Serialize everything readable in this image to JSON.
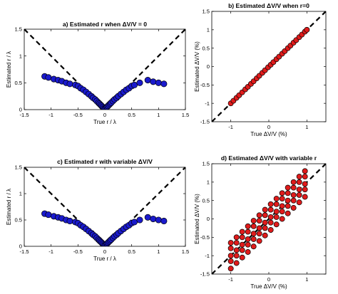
{
  "chart_data": [
    {
      "type": "scatter",
      "panel": "a",
      "title": "a) Estimated r when  ΔV/V = 0",
      "xlabel": "True r / λ",
      "ylabel": "Estimated r / λ",
      "xlim": [
        -1.5,
        1.5
      ],
      "ylim": [
        0,
        1.5
      ],
      "xticks": [
        -1.5,
        -1,
        -0.5,
        0,
        0.5,
        1,
        1.5
      ],
      "yticks": [
        0,
        0.5,
        1,
        1.5
      ],
      "xtick_labels": [
        "-1.5",
        "-1",
        "-0.5",
        "0",
        "0.5",
        "1",
        "1.5"
      ],
      "ytick_labels": [
        "0",
        "0.5",
        "1",
        "1.5"
      ],
      "grid": false,
      "reference_line": "|y| = |x| (dashed)",
      "marker_color": "#1a1acc",
      "x": [
        -1.12,
        -1.05,
        -0.95,
        -0.87,
        -0.8,
        -0.72,
        -0.65,
        -0.55,
        -0.5,
        -0.45,
        -0.4,
        -0.35,
        -0.3,
        -0.25,
        -0.22,
        -0.18,
        -0.15,
        -0.12,
        -0.1,
        -0.08,
        -0.06,
        -0.04,
        -0.02,
        0,
        0.02,
        0.04,
        0.06,
        0.08,
        0.1,
        0.12,
        0.15,
        0.18,
        0.22,
        0.25,
        0.3,
        0.35,
        0.4,
        0.45,
        0.5,
        0.55,
        0.65,
        0.8,
        0.9,
        1.0,
        1.1
      ],
      "y": [
        0.62,
        0.6,
        0.57,
        0.55,
        0.53,
        0.5,
        0.48,
        0.46,
        0.44,
        0.4,
        0.37,
        0.33,
        0.29,
        0.25,
        0.22,
        0.19,
        0.16,
        0.13,
        0.11,
        0.09,
        0.07,
        0.05,
        0.03,
        0.02,
        0.03,
        0.05,
        0.07,
        0.09,
        0.11,
        0.13,
        0.16,
        0.19,
        0.22,
        0.25,
        0.29,
        0.33,
        0.37,
        0.4,
        0.44,
        0.46,
        0.5,
        0.55,
        0.52,
        0.5,
        0.48
      ]
    },
    {
      "type": "scatter",
      "panel": "b",
      "title": "b) Estimated ΔV/V when  r=0",
      "xlabel": "True  ΔV/V (%)",
      "ylabel": "Estimated  ΔV/V (%)",
      "xlim": [
        -1.5,
        1.5
      ],
      "ylim": [
        -1.5,
        1.5
      ],
      "xticks": [
        -1,
        0,
        1
      ],
      "yticks": [
        -1.5,
        -1,
        -0.5,
        0,
        0.5,
        1,
        1.5
      ],
      "xtick_labels": [
        "-1",
        "0",
        "1"
      ],
      "ytick_labels": [
        "-1.5",
        "-1",
        "-0.5",
        "0",
        "0.5",
        "1",
        "1.5"
      ],
      "grid": false,
      "reference_line": "y = x (dashed)",
      "marker_color": "#e01b1b",
      "x": [
        -1.0,
        -0.93,
        -0.85,
        -0.78,
        -0.7,
        -0.62,
        -0.55,
        -0.47,
        -0.4,
        -0.32,
        -0.25,
        -0.17,
        -0.1,
        -0.02,
        0.05,
        0.12,
        0.2,
        0.27,
        0.35,
        0.42,
        0.5,
        0.57,
        0.65,
        0.72,
        0.8,
        0.87,
        0.95,
        1.0
      ],
      "y": [
        -1.0,
        -0.93,
        -0.85,
        -0.78,
        -0.7,
        -0.62,
        -0.55,
        -0.47,
        -0.4,
        -0.32,
        -0.25,
        -0.17,
        -0.1,
        -0.02,
        0.05,
        0.12,
        0.2,
        0.27,
        0.35,
        0.42,
        0.5,
        0.57,
        0.65,
        0.72,
        0.8,
        0.87,
        0.95,
        1.0
      ]
    },
    {
      "type": "scatter",
      "panel": "c",
      "title": "c) Estimated r with variable  ΔV/V",
      "xlabel": "True r / λ",
      "ylabel": "Estimated r / λ",
      "xlim": [
        -1.5,
        1.5
      ],
      "ylim": [
        0,
        1.5
      ],
      "xticks": [
        -1.5,
        -1,
        -0.5,
        0,
        0.5,
        1,
        1.5
      ],
      "yticks": [
        0,
        0.5,
        1,
        1.5
      ],
      "xtick_labels": [
        "-1.5",
        "-1",
        "-0.5",
        "0",
        "0.5",
        "1",
        "1.5"
      ],
      "ytick_labels": [
        "0",
        "0.5",
        "1",
        "1.5"
      ],
      "grid": false,
      "reference_line": "|y| = |x| (dashed)",
      "marker_color": "#1a1acc",
      "x": [
        -1.12,
        -1.05,
        -0.95,
        -0.87,
        -0.8,
        -0.72,
        -0.65,
        -0.55,
        -0.5,
        -0.45,
        -0.4,
        -0.35,
        -0.3,
        -0.25,
        -0.22,
        -0.18,
        -0.15,
        -0.12,
        -0.1,
        -0.08,
        -0.06,
        -0.04,
        -0.02,
        0,
        0.02,
        0.04,
        0.06,
        0.08,
        0.1,
        0.12,
        0.15,
        0.18,
        0.22,
        0.25,
        0.3,
        0.35,
        0.4,
        0.45,
        0.5,
        0.55,
        0.65,
        0.8,
        0.9,
        1.0,
        1.1
      ],
      "y": [
        0.62,
        0.6,
        0.57,
        0.55,
        0.53,
        0.5,
        0.48,
        0.46,
        0.44,
        0.4,
        0.37,
        0.33,
        0.29,
        0.25,
        0.22,
        0.19,
        0.16,
        0.13,
        0.11,
        0.09,
        0.07,
        0.05,
        0.03,
        0.02,
        0.03,
        0.05,
        0.07,
        0.09,
        0.11,
        0.13,
        0.16,
        0.19,
        0.22,
        0.25,
        0.29,
        0.33,
        0.37,
        0.4,
        0.44,
        0.46,
        0.5,
        0.55,
        0.52,
        0.5,
        0.48
      ]
    },
    {
      "type": "scatter",
      "panel": "d",
      "title": "d) Estimated ΔV/V with variable r",
      "xlabel": "True  ΔV/V (%)",
      "ylabel": "Estimated  ΔV/V (%)",
      "xlim": [
        -1.5,
        1.5
      ],
      "ylim": [
        -1.5,
        1.5
      ],
      "xticks": [
        -1,
        0,
        1
      ],
      "yticks": [
        -1.5,
        -1,
        -0.5,
        0,
        0.5,
        1,
        1.5
      ],
      "xtick_labels": [
        "-1",
        "0",
        "1"
      ],
      "ytick_labels": [
        "-1.5",
        "-1",
        "-0.5",
        "0",
        "0.5",
        "1",
        "1.5"
      ],
      "grid": false,
      "reference_line": "y = x (dashed)",
      "marker_color": "#e01b1b",
      "x": [
        -1.0,
        -1.0,
        -1.0,
        -1.0,
        -1.0,
        -0.85,
        -0.85,
        -0.85,
        -0.85,
        -0.85,
        -0.7,
        -0.7,
        -0.7,
        -0.7,
        -0.7,
        -0.55,
        -0.55,
        -0.55,
        -0.55,
        -0.55,
        -0.4,
        -0.4,
        -0.4,
        -0.4,
        -0.4,
        -0.25,
        -0.25,
        -0.25,
        -0.25,
        -0.25,
        -0.1,
        -0.1,
        -0.1,
        -0.1,
        -0.1,
        0.05,
        0.05,
        0.05,
        0.05,
        0.05,
        0.2,
        0.2,
        0.2,
        0.2,
        0.2,
        0.35,
        0.35,
        0.35,
        0.35,
        0.35,
        0.5,
        0.5,
        0.5,
        0.5,
        0.5,
        0.65,
        0.65,
        0.65,
        0.65,
        0.65,
        0.8,
        0.8,
        0.8,
        0.8,
        0.8,
        0.95,
        0.95,
        0.95,
        0.95,
        0.95
      ],
      "y": [
        -1.35,
        -1.15,
        -1.0,
        -0.8,
        -0.65,
        -1.2,
        -1.0,
        -0.85,
        -0.65,
        -0.5,
        -1.05,
        -0.85,
        -0.7,
        -0.5,
        -0.35,
        -0.9,
        -0.7,
        -0.55,
        -0.35,
        -0.2,
        -0.75,
        -0.55,
        -0.4,
        -0.2,
        -0.05,
        -0.6,
        -0.4,
        -0.25,
        -0.05,
        0.1,
        -0.45,
        -0.25,
        -0.1,
        0.1,
        0.25,
        -0.3,
        -0.1,
        0.05,
        0.25,
        0.4,
        -0.15,
        0.05,
        0.2,
        0.4,
        0.55,
        0.0,
        0.2,
        0.35,
        0.55,
        0.7,
        0.15,
        0.35,
        0.5,
        0.7,
        0.85,
        0.3,
        0.5,
        0.65,
        0.85,
        1.0,
        0.45,
        0.65,
        0.8,
        1.0,
        1.15,
        0.6,
        0.8,
        0.95,
        1.15,
        1.3
      ]
    }
  ]
}
